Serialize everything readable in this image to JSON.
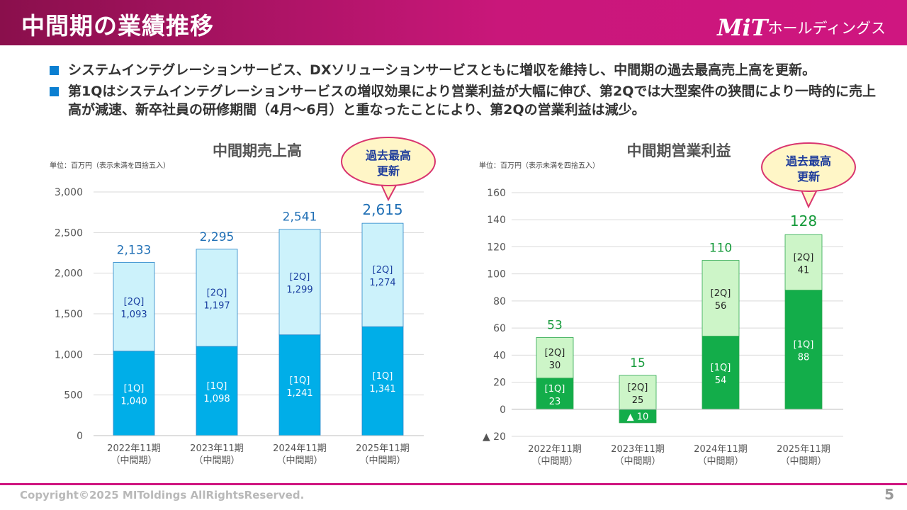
{
  "header": {
    "title": "中間期の業績推移",
    "logo_mark": "MiT",
    "logo_text": "ホールディングス"
  },
  "bullets": [
    "システムインテグレーションサービス、DXソリューションサービスともに増収を維持し、中間期の過去最高売上高を更新。",
    "第1Qはシステムインテグレーションサービスの増収効果により営業利益が大幅に伸び、第2Qでは大型案件の狭間により一時的に売上高が減速、新卒社員の研修期間（4月～6月）と重なったことにより、第2Qの営業利益は減少。"
  ],
  "colors": {
    "header": "#c9177a",
    "sales_q1": "#00aee8",
    "sales_q2": "#ccf2fb",
    "profit_q1": "#13ad4a",
    "profit_q2": "#cdf5c8",
    "sales_total_label": "#1f6fb5",
    "profit_total_label": "#159a3a",
    "sales_seg_label": "#1a3fa0"
  },
  "chart_data": [
    {
      "type": "bar",
      "stacked": true,
      "title": "中間期売上高",
      "unit_note": "単位：百万円（表示未満を四捨五入）",
      "categories": [
        [
          "2022年11期",
          "（中間期）"
        ],
        [
          "2023年11期",
          "（中間期）"
        ],
        [
          "2024年11期",
          "（中間期）"
        ],
        [
          "2025年11期",
          "（中間期）"
        ]
      ],
      "series": [
        {
          "name": "[1Q]",
          "values": [
            1040,
            1098,
            1241,
            1341
          ],
          "labels": [
            "1,040",
            "1,098",
            "1,241",
            "1,341"
          ]
        },
        {
          "name": "[2Q]",
          "values": [
            1093,
            1197,
            1299,
            1274
          ],
          "labels": [
            "1,093",
            "1,197",
            "1,299",
            "1,274"
          ]
        }
      ],
      "totals": [
        "2,133",
        "2,295",
        "2,541",
        "2,615"
      ],
      "ylim": [
        0,
        3000
      ],
      "yticks": [
        {
          "v": 0,
          "label": "0"
        },
        {
          "v": 500,
          "label": "500"
        },
        {
          "v": 1000,
          "label": "1,000"
        },
        {
          "v": 1500,
          "label": "1,500"
        },
        {
          "v": 2000,
          "label": "2,000"
        },
        {
          "v": 2500,
          "label": "2,500"
        },
        {
          "v": 3000,
          "label": "3,000"
        }
      ],
      "grid": true,
      "callout": [
        "過去最高",
        "更新"
      ]
    },
    {
      "type": "bar",
      "stacked": true,
      "title": "中間期営業利益",
      "unit_note": "単位：百万円（表示未満を四捨五入）",
      "categories": [
        [
          "2022年11期",
          "（中間期）"
        ],
        [
          "2023年11期",
          "（中間期）"
        ],
        [
          "2024年11期",
          "（中間期）"
        ],
        [
          "2025年11期",
          "（中間期）"
        ]
      ],
      "series": [
        {
          "name": "[1Q]",
          "values": [
            23,
            -10,
            54,
            88
          ],
          "labels": [
            "23",
            "▲ 10",
            "54",
            "88"
          ]
        },
        {
          "name": "[2Q]",
          "values": [
            30,
            25,
            56,
            41
          ],
          "labels": [
            "30",
            "25",
            "56",
            "41"
          ]
        }
      ],
      "totals": [
        "53",
        "15",
        "110",
        "128"
      ],
      "ylim": [
        -20,
        160
      ],
      "yticks": [
        {
          "v": -20,
          "label": "▲ 20"
        },
        {
          "v": 0,
          "label": "0"
        },
        {
          "v": 20,
          "label": "20"
        },
        {
          "v": 40,
          "label": "40"
        },
        {
          "v": 60,
          "label": "60"
        },
        {
          "v": 80,
          "label": "80"
        },
        {
          "v": 100,
          "label": "100"
        },
        {
          "v": 120,
          "label": "120"
        },
        {
          "v": 140,
          "label": "140"
        },
        {
          "v": 160,
          "label": "160"
        }
      ],
      "grid": true,
      "callout": [
        "過去最高",
        "更新"
      ]
    }
  ],
  "footer": {
    "copyright": "Copyright©2025 MIToldings AllRightsReserved.",
    "page": "5"
  }
}
